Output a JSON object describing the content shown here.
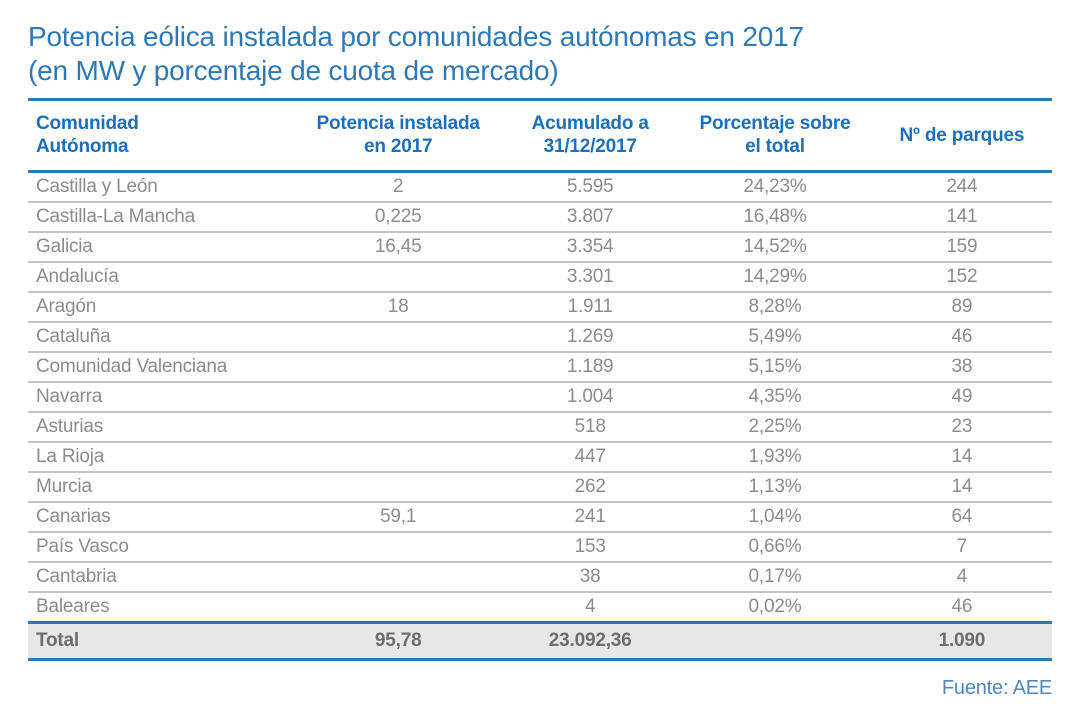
{
  "page": {
    "title_line1": "Potencia eólica instalada por comunidades autónomas en 2017",
    "title_line2": "(en MW y porcentaje de cuota de mercado)",
    "source": "Fuente: AEE"
  },
  "colors": {
    "title_blue": "#2e79b5",
    "header_blue": "#1c6fb8",
    "rule_blue": "#2e77b4",
    "row_text_gray": "#8c8c8c",
    "separator_gray": "#c3c3c3",
    "total_row_bg": "#e7e7e7",
    "total_text_gray": "#6d6d6d",
    "source_blue": "#4d86c0"
  },
  "chart_data": {
    "type": "table",
    "title": "Potencia eólica instalada por comunidades autónomas en 2017 (en MW y porcentaje de cuota de mercado)",
    "columns": [
      "Comunidad\nAutónoma",
      "Potencia instalada\nen 2017",
      "Acumulado a\n31/12/2017",
      "Porcentaje sobre\nel total",
      "Nº de parques"
    ],
    "rows": [
      [
        "Castilla y León",
        "2",
        "5.595",
        "24,23%",
        "244"
      ],
      [
        "Castilla-La Mancha",
        "0,225",
        "3.807",
        "16,48%",
        "141"
      ],
      [
        "Galicia",
        "16,45",
        "3.354",
        "14,52%",
        "159"
      ],
      [
        "Andalucía",
        "",
        "3.301",
        "14,29%",
        "152"
      ],
      [
        "Aragón",
        "18",
        "1.911",
        "8,28%",
        "89"
      ],
      [
        "Cataluña",
        "",
        "1.269",
        "5,49%",
        "46"
      ],
      [
        "Comunidad Valenciana",
        "",
        "1.189",
        "5,15%",
        "38"
      ],
      [
        "Navarra",
        "",
        "1.004",
        "4,35%",
        "49"
      ],
      [
        "Asturias",
        "",
        "518",
        "2,25%",
        "23"
      ],
      [
        "La Rioja",
        "",
        "447",
        "1,93%",
        "14"
      ],
      [
        "Murcia",
        "",
        "262",
        "1,13%",
        "14"
      ],
      [
        "Canarias",
        "59,1",
        "241",
        "1,04%",
        "64"
      ],
      [
        "País Vasco",
        "",
        "153",
        "0,66%",
        "7"
      ],
      [
        "Cantabria",
        "",
        "38",
        "0,17%",
        "4"
      ],
      [
        "Baleares",
        "",
        "4",
        "0,02%",
        "46"
      ]
    ],
    "total": [
      "Total",
      "95,78",
      "23.092,36",
      "",
      "1.090"
    ],
    "source": "Fuente: AEE"
  }
}
